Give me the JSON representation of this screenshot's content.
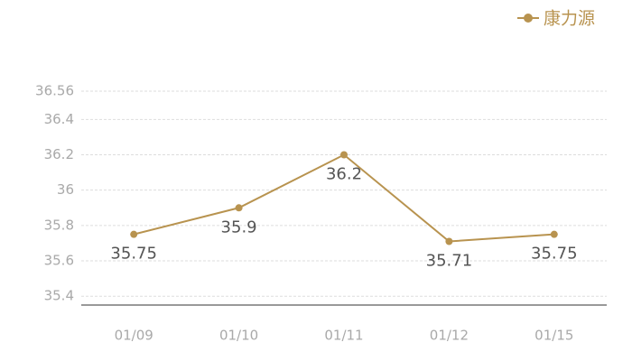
{
  "chart_data": {
    "type": "line",
    "categories": [
      "01/09",
      "01/10",
      "01/11",
      "01/12",
      "01/15"
    ],
    "series": [
      {
        "name": "康力源",
        "color": "#b8934f",
        "values": [
          35.75,
          35.9,
          36.2,
          35.71,
          35.75
        ]
      }
    ],
    "ylim": [
      35.35,
      36.56
    ],
    "yticks": [
      35.4,
      35.6,
      35.8,
      36,
      36.2,
      36.4,
      36.56
    ],
    "grid": true,
    "legend": "top-right"
  }
}
